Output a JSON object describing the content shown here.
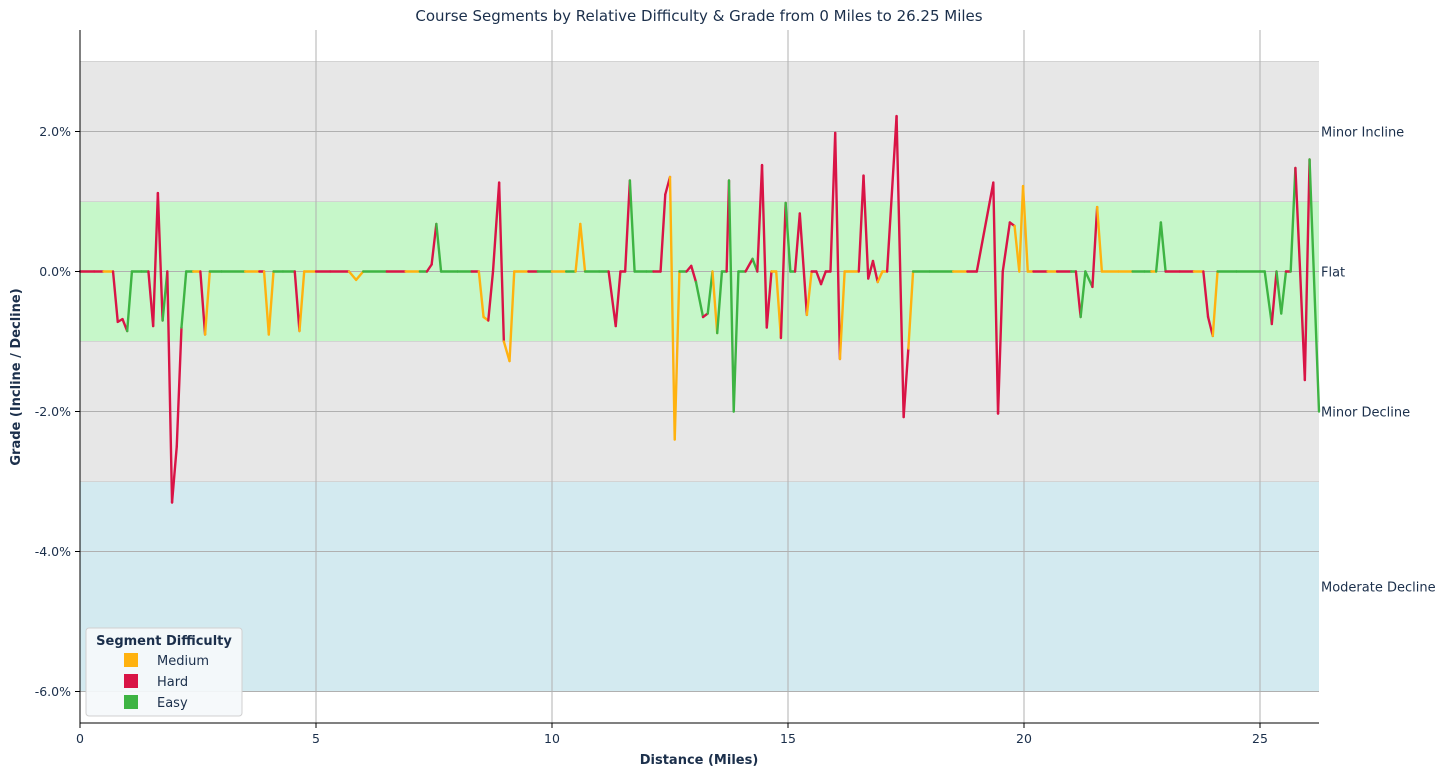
{
  "chart_data": {
    "type": "line",
    "title": "Course Segments by Relative Difficulty & Grade from 0 Miles to 26.25 Miles",
    "xlabel": "Distance (Miles)",
    "ylabel": "Grade (Incline / Decline)",
    "xlim": [
      0,
      26.25
    ],
    "ylim": [
      -6.45,
      3.45
    ],
    "xticks": [
      0,
      5,
      10,
      15,
      20,
      25
    ],
    "yticks": [
      -6,
      -4,
      -2,
      0,
      2
    ],
    "ytick_labels": [
      "-6.0%",
      "-4.0%",
      "-2.0%",
      "0.0%",
      "2.0%"
    ],
    "grid": true,
    "bands": [
      {
        "label": "Minor Incline",
        "from": 1,
        "to": 3,
        "color": "#e7e7e7",
        "label_y": 2
      },
      {
        "label": "Flat",
        "from": -1,
        "to": 1,
        "color": "#c6f7c9",
        "label_y": 0
      },
      {
        "label": "Minor Decline",
        "from": -3,
        "to": -1,
        "color": "#e7e7e7",
        "label_y": -2
      },
      {
        "label": "Moderate Decline",
        "from": -6,
        "to": -3,
        "color": "#d3eaf0",
        "label_y": -4.5
      }
    ],
    "legend": {
      "title": "Segment Difficulty",
      "position": "lower-left",
      "entries": [
        {
          "name": "Medium",
          "color": "#ffb20f"
        },
        {
          "name": "Hard",
          "color": "#d91446"
        },
        {
          "name": "Easy",
          "color": "#3eb443"
        }
      ]
    },
    "colors": {
      "Medium": "#ffb20f",
      "Hard": "#d91446",
      "Easy": "#3eb443"
    },
    "points": [
      [
        0,
        0,
        "Hard"
      ],
      [
        0.3,
        0,
        "Hard"
      ],
      [
        0.5,
        0,
        "Medium"
      ],
      [
        0.7,
        0,
        "Hard"
      ],
      [
        0.8,
        -0.72,
        "Hard"
      ],
      [
        0.9,
        -0.68,
        "Hard"
      ],
      [
        1.0,
        -0.85,
        "Easy"
      ],
      [
        1.1,
        0,
        "Easy"
      ],
      [
        1.3,
        0,
        "Easy"
      ],
      [
        1.45,
        0,
        "Hard"
      ],
      [
        1.55,
        -0.78,
        "Hard"
      ],
      [
        1.65,
        1.12,
        "Hard"
      ],
      [
        1.75,
        -0.7,
        "Easy"
      ],
      [
        1.85,
        0,
        "Hard"
      ],
      [
        1.95,
        -3.3,
        "Hard"
      ],
      [
        2.05,
        -2.5,
        "Hard"
      ],
      [
        2.15,
        -0.8,
        "Easy"
      ],
      [
        2.25,
        0,
        "Easy"
      ],
      [
        2.4,
        0,
        "Medium"
      ],
      [
        2.55,
        0,
        "Hard"
      ],
      [
        2.65,
        -0.9,
        "Medium"
      ],
      [
        2.75,
        0,
        "Easy"
      ],
      [
        3.0,
        0,
        "Easy"
      ],
      [
        3.5,
        0,
        "Medium"
      ],
      [
        3.8,
        0,
        "Hard"
      ],
      [
        3.9,
        0,
        "Medium"
      ],
      [
        4.0,
        -0.9,
        "Medium"
      ],
      [
        4.1,
        0,
        "Easy"
      ],
      [
        4.3,
        0,
        "Easy"
      ],
      [
        4.55,
        0,
        "Hard"
      ],
      [
        4.65,
        -0.85,
        "Medium"
      ],
      [
        4.75,
        0,
        "Medium"
      ],
      [
        5.0,
        0,
        "Hard"
      ],
      [
        5.3,
        0,
        "Hard"
      ],
      [
        5.7,
        0,
        "Medium"
      ],
      [
        5.85,
        -0.12,
        "Medium"
      ],
      [
        6.0,
        0,
        "Easy"
      ],
      [
        6.5,
        0,
        "Hard"
      ],
      [
        6.9,
        0,
        "Medium"
      ],
      [
        7.2,
        0,
        "Easy"
      ],
      [
        7.35,
        0,
        "Hard"
      ],
      [
        7.45,
        0.1,
        "Hard"
      ],
      [
        7.55,
        0.68,
        "Easy"
      ],
      [
        7.65,
        0,
        "Easy"
      ],
      [
        8.0,
        0,
        "Easy"
      ],
      [
        8.3,
        0,
        "Hard"
      ],
      [
        8.45,
        0,
        "Medium"
      ],
      [
        8.55,
        -0.65,
        "Medium"
      ],
      [
        8.65,
        -0.7,
        "Hard"
      ],
      [
        8.75,
        0,
        "Hard"
      ],
      [
        8.88,
        1.27,
        "Hard"
      ],
      [
        8.98,
        -1.0,
        "Medium"
      ],
      [
        9.1,
        -1.28,
        "Medium"
      ],
      [
        9.2,
        0,
        "Medium"
      ],
      [
        9.5,
        0,
        "Hard"
      ],
      [
        9.7,
        0,
        "Easy"
      ],
      [
        10.0,
        0,
        "Medium"
      ],
      [
        10.3,
        0,
        "Easy"
      ],
      [
        10.5,
        0,
        "Medium"
      ],
      [
        10.6,
        0.68,
        "Medium"
      ],
      [
        10.7,
        0,
        "Easy"
      ],
      [
        11.0,
        0,
        "Easy"
      ],
      [
        11.2,
        0,
        "Hard"
      ],
      [
        11.35,
        -0.78,
        "Hard"
      ],
      [
        11.45,
        0,
        "Hard"
      ],
      [
        11.55,
        0,
        "Hard"
      ],
      [
        11.65,
        1.3,
        "Easy"
      ],
      [
        11.75,
        0,
        "Easy"
      ],
      [
        12.0,
        0,
        "Easy"
      ],
      [
        12.15,
        0,
        "Hard"
      ],
      [
        12.3,
        0,
        "Hard"
      ],
      [
        12.4,
        1.1,
        "Hard"
      ],
      [
        12.5,
        1.35,
        "Medium"
      ],
      [
        12.6,
        -2.4,
        "Medium"
      ],
      [
        12.7,
        0,
        "Easy"
      ],
      [
        12.85,
        0,
        "Hard"
      ],
      [
        12.95,
        0.08,
        "Hard"
      ],
      [
        13.05,
        -0.15,
        "Easy"
      ],
      [
        13.2,
        -0.65,
        "Hard"
      ],
      [
        13.3,
        -0.6,
        "Easy"
      ],
      [
        13.4,
        0,
        "Medium"
      ],
      [
        13.5,
        -0.88,
        "Easy"
      ],
      [
        13.6,
        0,
        "Easy"
      ],
      [
        13.7,
        0,
        "Hard"
      ],
      [
        13.75,
        1.3,
        "Easy"
      ],
      [
        13.85,
        -2.0,
        "Easy"
      ],
      [
        13.95,
        0,
        "Easy"
      ],
      [
        14.1,
        0,
        "Hard"
      ],
      [
        14.25,
        0.18,
        "Easy"
      ],
      [
        14.35,
        0,
        "Hard"
      ],
      [
        14.45,
        1.52,
        "Hard"
      ],
      [
        14.55,
        -0.8,
        "Hard"
      ],
      [
        14.65,
        0,
        "Medium"
      ],
      [
        14.75,
        0,
        "Medium"
      ],
      [
        14.85,
        -0.95,
        "Hard"
      ],
      [
        14.95,
        0.98,
        "Easy"
      ],
      [
        15.05,
        0,
        "Easy"
      ],
      [
        15.15,
        0,
        "Hard"
      ],
      [
        15.25,
        0.83,
        "Hard"
      ],
      [
        15.4,
        -0.62,
        "Medium"
      ],
      [
        15.5,
        0,
        "Hard"
      ],
      [
        15.6,
        0,
        "Hard"
      ],
      [
        15.7,
        -0.18,
        "Hard"
      ],
      [
        15.8,
        0,
        "Hard"
      ],
      [
        15.9,
        0,
        "Hard"
      ],
      [
        16.0,
        1.98,
        "Hard"
      ],
      [
        16.1,
        -1.25,
        "Medium"
      ],
      [
        16.2,
        0,
        "Medium"
      ],
      [
        16.5,
        0,
        "Hard"
      ],
      [
        16.6,
        1.37,
        "Hard"
      ],
      [
        16.7,
        -0.1,
        "Hard"
      ],
      [
        16.8,
        0.15,
        "Hard"
      ],
      [
        16.9,
        -0.15,
        "Medium"
      ],
      [
        17.0,
        0,
        "Medium"
      ],
      [
        17.1,
        0,
        "Hard"
      ],
      [
        17.3,
        2.22,
        "Hard"
      ],
      [
        17.45,
        -2.08,
        "Hard"
      ],
      [
        17.55,
        -1.1,
        "Medium"
      ],
      [
        17.65,
        0,
        "Easy"
      ],
      [
        18.0,
        0,
        "Easy"
      ],
      [
        18.5,
        0,
        "Medium"
      ],
      [
        18.8,
        0,
        "Hard"
      ],
      [
        19.0,
        0,
        "Hard"
      ],
      [
        19.35,
        1.27,
        "Hard"
      ],
      [
        19.45,
        -2.03,
        "Hard"
      ],
      [
        19.55,
        0,
        "Hard"
      ],
      [
        19.7,
        0.7,
        "Hard"
      ],
      [
        19.8,
        0.65,
        "Medium"
      ],
      [
        19.9,
        0,
        "Medium"
      ],
      [
        19.98,
        1.22,
        "Medium"
      ],
      [
        20.08,
        0,
        "Medium"
      ],
      [
        20.2,
        0,
        "Hard"
      ],
      [
        20.5,
        0,
        "Medium"
      ],
      [
        20.7,
        0,
        "Hard"
      ],
      [
        21.0,
        0,
        "Easy"
      ],
      [
        21.1,
        0,
        "Hard"
      ],
      [
        21.2,
        -0.65,
        "Easy"
      ],
      [
        21.3,
        0,
        "Easy"
      ],
      [
        21.45,
        -0.22,
        "Hard"
      ],
      [
        21.55,
        0.92,
        "Medium"
      ],
      [
        21.65,
        0,
        "Medium"
      ],
      [
        22.0,
        0,
        "Medium"
      ],
      [
        22.3,
        0,
        "Easy"
      ],
      [
        22.55,
        0,
        "Easy"
      ],
      [
        22.7,
        0,
        "Medium"
      ],
      [
        22.8,
        0,
        "Easy"
      ],
      [
        22.9,
        0.7,
        "Easy"
      ],
      [
        23.0,
        0,
        "Hard"
      ],
      [
        23.3,
        0,
        "Hard"
      ],
      [
        23.6,
        0,
        "Medium"
      ],
      [
        23.8,
        0,
        "Hard"
      ],
      [
        23.9,
        -0.65,
        "Hard"
      ],
      [
        24.0,
        -0.92,
        "Medium"
      ],
      [
        24.1,
        0,
        "Easy"
      ],
      [
        24.5,
        0,
        "Easy"
      ],
      [
        25.0,
        0,
        "Easy"
      ],
      [
        25.1,
        0,
        "Easy"
      ],
      [
        25.25,
        -0.75,
        "Hard"
      ],
      [
        25.35,
        0,
        "Easy"
      ],
      [
        25.45,
        -0.6,
        "Easy"
      ],
      [
        25.55,
        0,
        "Hard"
      ],
      [
        25.65,
        0,
        "Easy"
      ],
      [
        25.75,
        1.48,
        "Hard"
      ],
      [
        25.85,
        0,
        "Hard"
      ],
      [
        25.95,
        -1.55,
        "Hard"
      ],
      [
        26.05,
        1.6,
        "Easy"
      ],
      [
        26.25,
        -2.0,
        "Hard"
      ]
    ]
  }
}
